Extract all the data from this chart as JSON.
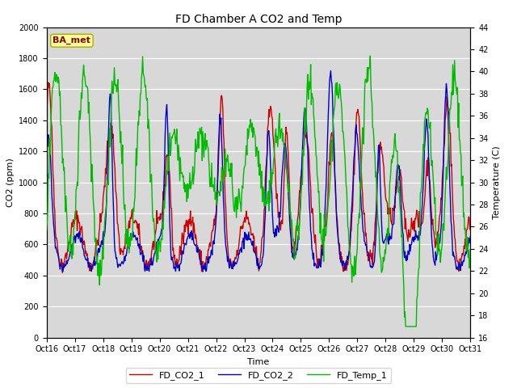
{
  "title": "FD Chamber A CO2 and Temp",
  "xlabel": "Time",
  "ylabel_left": "CO2 (ppm)",
  "ylabel_right": "Temperature (C)",
  "ylim_left": [
    0,
    2000
  ],
  "ylim_right": [
    16,
    44
  ],
  "yticks_left": [
    0,
    200,
    400,
    600,
    800,
    1000,
    1200,
    1400,
    1600,
    1800,
    2000
  ],
  "yticks_right": [
    16,
    18,
    20,
    22,
    24,
    26,
    28,
    30,
    32,
    34,
    36,
    38,
    40,
    42,
    44
  ],
  "xtick_labels": [
    "Oct 16",
    "Oct 17",
    "Oct 18",
    "Oct 19",
    "Oct 20",
    "Oct 21",
    "Oct 22",
    "Oct 23",
    "Oct 24",
    "Oct 25",
    "Oct 26",
    "Oct 27",
    "Oct 28",
    "Oct 29",
    "Oct 30",
    "Oct 31"
  ],
  "color_co2_1": "#cc0000",
  "color_co2_2": "#0000cc",
  "color_temp": "#00bb00",
  "legend_label_1": "FD_CO2_1",
  "legend_label_2": "FD_CO2_2",
  "legend_label_3": "FD_Temp_1",
  "annotation_text": "BA_met",
  "bg_color": "#d8d8d8",
  "grid_color": "#ffffff",
  "line_width": 1.0,
  "title_fontsize": 10,
  "axis_label_fontsize": 8,
  "tick_fontsize": 7,
  "legend_fontsize": 8
}
